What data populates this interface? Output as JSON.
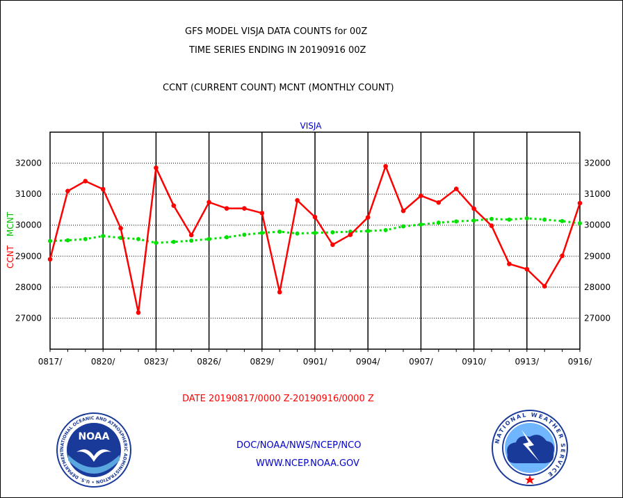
{
  "header": {
    "title_line1": "GFS MODEL VISJA DATA COUNTS for 00Z",
    "title_line2": "TIME SERIES ENDING IN 20190916 00Z",
    "subtitle": "CCNT (CURRENT COUNT) MCNT (MONTHLY COUNT)"
  },
  "footer": {
    "date_range": "DATE 20190817/0000 Z-20190916/0000 Z",
    "org": "DOC/NOAA/NWS/NCEP/NCO",
    "url": "WWW.NCEP.NOAA.GOV"
  },
  "logos": {
    "noaa_text": "NOAA",
    "noaa_ring": "NATIONAL OCEANIC AND ATMOSPHERIC ADMINISTRATION • U.S. DEPARTMENT OF COMMERCE •",
    "nws_ring": "NATIONAL WEATHER SERVICE"
  },
  "colors": {
    "ccnt": "#ff0000",
    "mcnt": "#00e000",
    "title": "#000000",
    "panel_label": "#0000cc",
    "footer_blue": "#0000cc",
    "footer_red": "#ff0000"
  },
  "chart_data": {
    "type": "line",
    "title": "VISJA",
    "ylabel_ccnt": "CCNT",
    "ylabel_mcnt": "MCNT",
    "ylim": [
      26000,
      33000
    ],
    "yticks": [
      27000,
      28000,
      29000,
      30000,
      31000,
      32000
    ],
    "ytick_labels": [
      "27000",
      "28000",
      "29000",
      "30000",
      "31000",
      "32000"
    ],
    "xtick_labels": [
      "0817/",
      "0820/",
      "0823/",
      "0826/",
      "0829/",
      "0901/",
      "0904/",
      "0907/",
      "0910/",
      "0913/",
      "0916/"
    ],
    "grid": true,
    "x": [
      "0817",
      "0818",
      "0819",
      "0820",
      "0821",
      "0822",
      "0823",
      "0824",
      "0825",
      "0826",
      "0827",
      "0828",
      "0829",
      "0830",
      "0831",
      "0901",
      "0902",
      "0903",
      "0904",
      "0905",
      "0906",
      "0907",
      "0908",
      "0909",
      "0910",
      "0911",
      "0912",
      "0913",
      "0914",
      "0915",
      "0916"
    ],
    "series": [
      {
        "name": "CCNT",
        "values": [
          28900,
          31100,
          31420,
          31160,
          29900,
          27180,
          31850,
          30630,
          29680,
          30740,
          30540,
          30540,
          30390,
          27840,
          30800,
          30260,
          29370,
          29690,
          30250,
          31900,
          30460,
          30950,
          30730,
          31170,
          30530,
          29980,
          28750,
          28580,
          28030,
          29010,
          30710
        ]
      },
      {
        "name": "MCNT",
        "values": [
          29490,
          29510,
          29550,
          29650,
          29590,
          29550,
          29430,
          29460,
          29500,
          29550,
          29610,
          29690,
          29750,
          29790,
          29730,
          29750,
          29770,
          29790,
          29810,
          29840,
          29960,
          30020,
          30080,
          30120,
          30150,
          30200,
          30180,
          30220,
          30180,
          30130,
          30060
        ]
      }
    ]
  }
}
